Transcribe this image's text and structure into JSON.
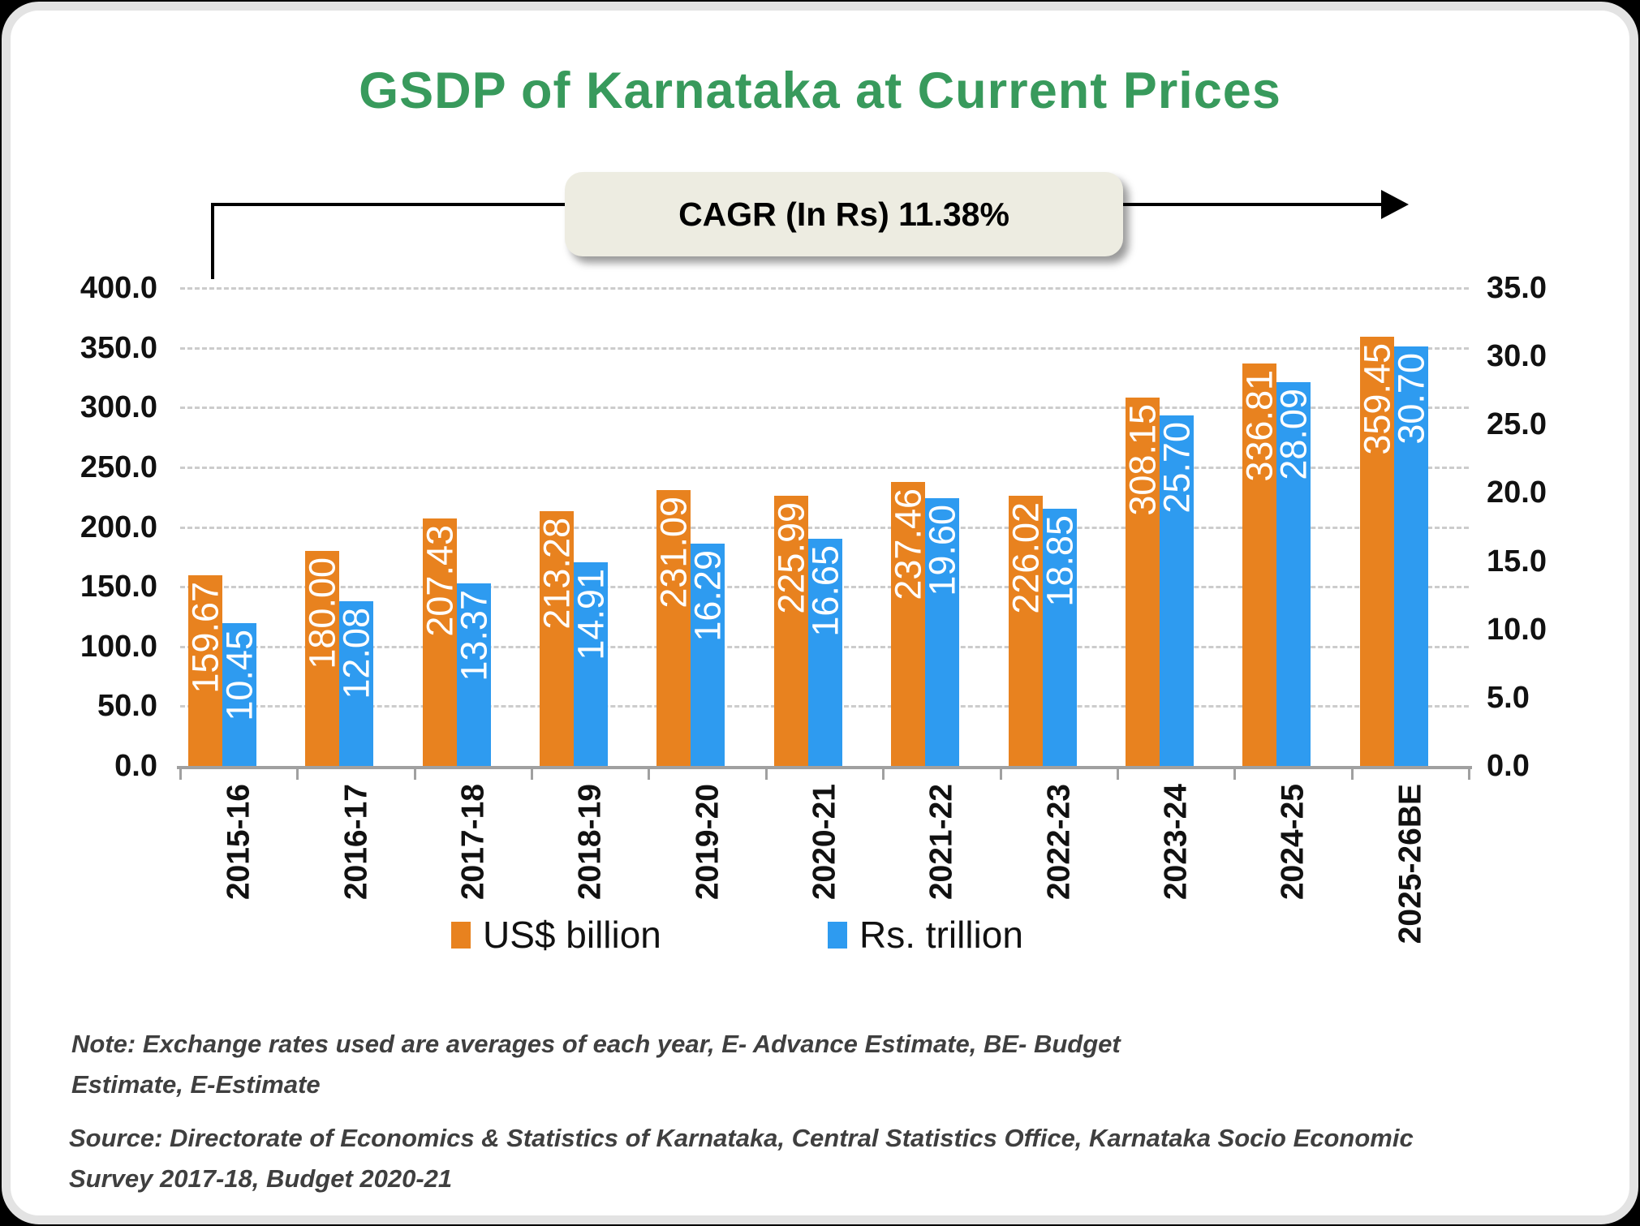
{
  "page": {
    "title": "GSDP of Karnataka at Current Prices"
  },
  "annotation": {
    "cagr_label": "CAGR (In Rs) 11.38%"
  },
  "chart_data": {
    "type": "bar",
    "title": "GSDP of Karnataka at Current Prices",
    "categories": [
      "2015-16",
      "2016-17",
      "2017-18",
      "2018-19",
      "2019-20",
      "2020-21",
      "2021-22",
      "2022-23",
      "2023-24",
      "2024-25",
      "2025-26BE"
    ],
    "series": [
      {
        "name": "US$ billion",
        "axis": "left",
        "color": "#e8821f",
        "values": [
          "159.67",
          "180.00",
          "207.43",
          "213.28",
          "231.09",
          "225.99",
          "237.46",
          "226.02",
          "308.15",
          "336.81",
          "359.45"
        ]
      },
      {
        "name": "Rs. trillion",
        "axis": "right",
        "color": "#2e9bf0",
        "values": [
          "10.45",
          "12.08",
          "13.37",
          "14.91",
          "16.29",
          "16.65",
          "19.60",
          "18.85",
          "25.70",
          "28.09",
          "30.70"
        ]
      }
    ],
    "left_axis": {
      "min": 0,
      "max": 400,
      "step": 50,
      "tick_labels": [
        "0.0",
        "50.0",
        "100.0",
        "150.0",
        "200.0",
        "250.0",
        "300.0",
        "350.0",
        "400.0"
      ]
    },
    "right_axis": {
      "min": 0,
      "max": 35,
      "step": 5,
      "tick_labels": [
        "0.0",
        "5.0",
        "10.0",
        "15.0",
        "20.0",
        "25.0",
        "30.0",
        "35.0"
      ]
    },
    "grid": "horizontal-dashed",
    "legend_position": "bottom",
    "data_labels": "inside-end-rotated"
  },
  "legend": {
    "items": [
      {
        "label": "US$ billion",
        "color": "#e8821f"
      },
      {
        "label": "Rs. trillion",
        "color": "#2e9bf0"
      }
    ]
  },
  "footer": {
    "note_line1": "Note: Exchange rates used are averages of each year, E- Advance Estimate, BE- Budget",
    "note_line2": "Estimate, E-Estimate",
    "source_line1": "Source: Directorate of Economics & Statistics of Karnataka, Central Statistics Office, Karnataka Socio Economic",
    "source_line2": "Survey 2017-18, Budget 2020-21"
  }
}
